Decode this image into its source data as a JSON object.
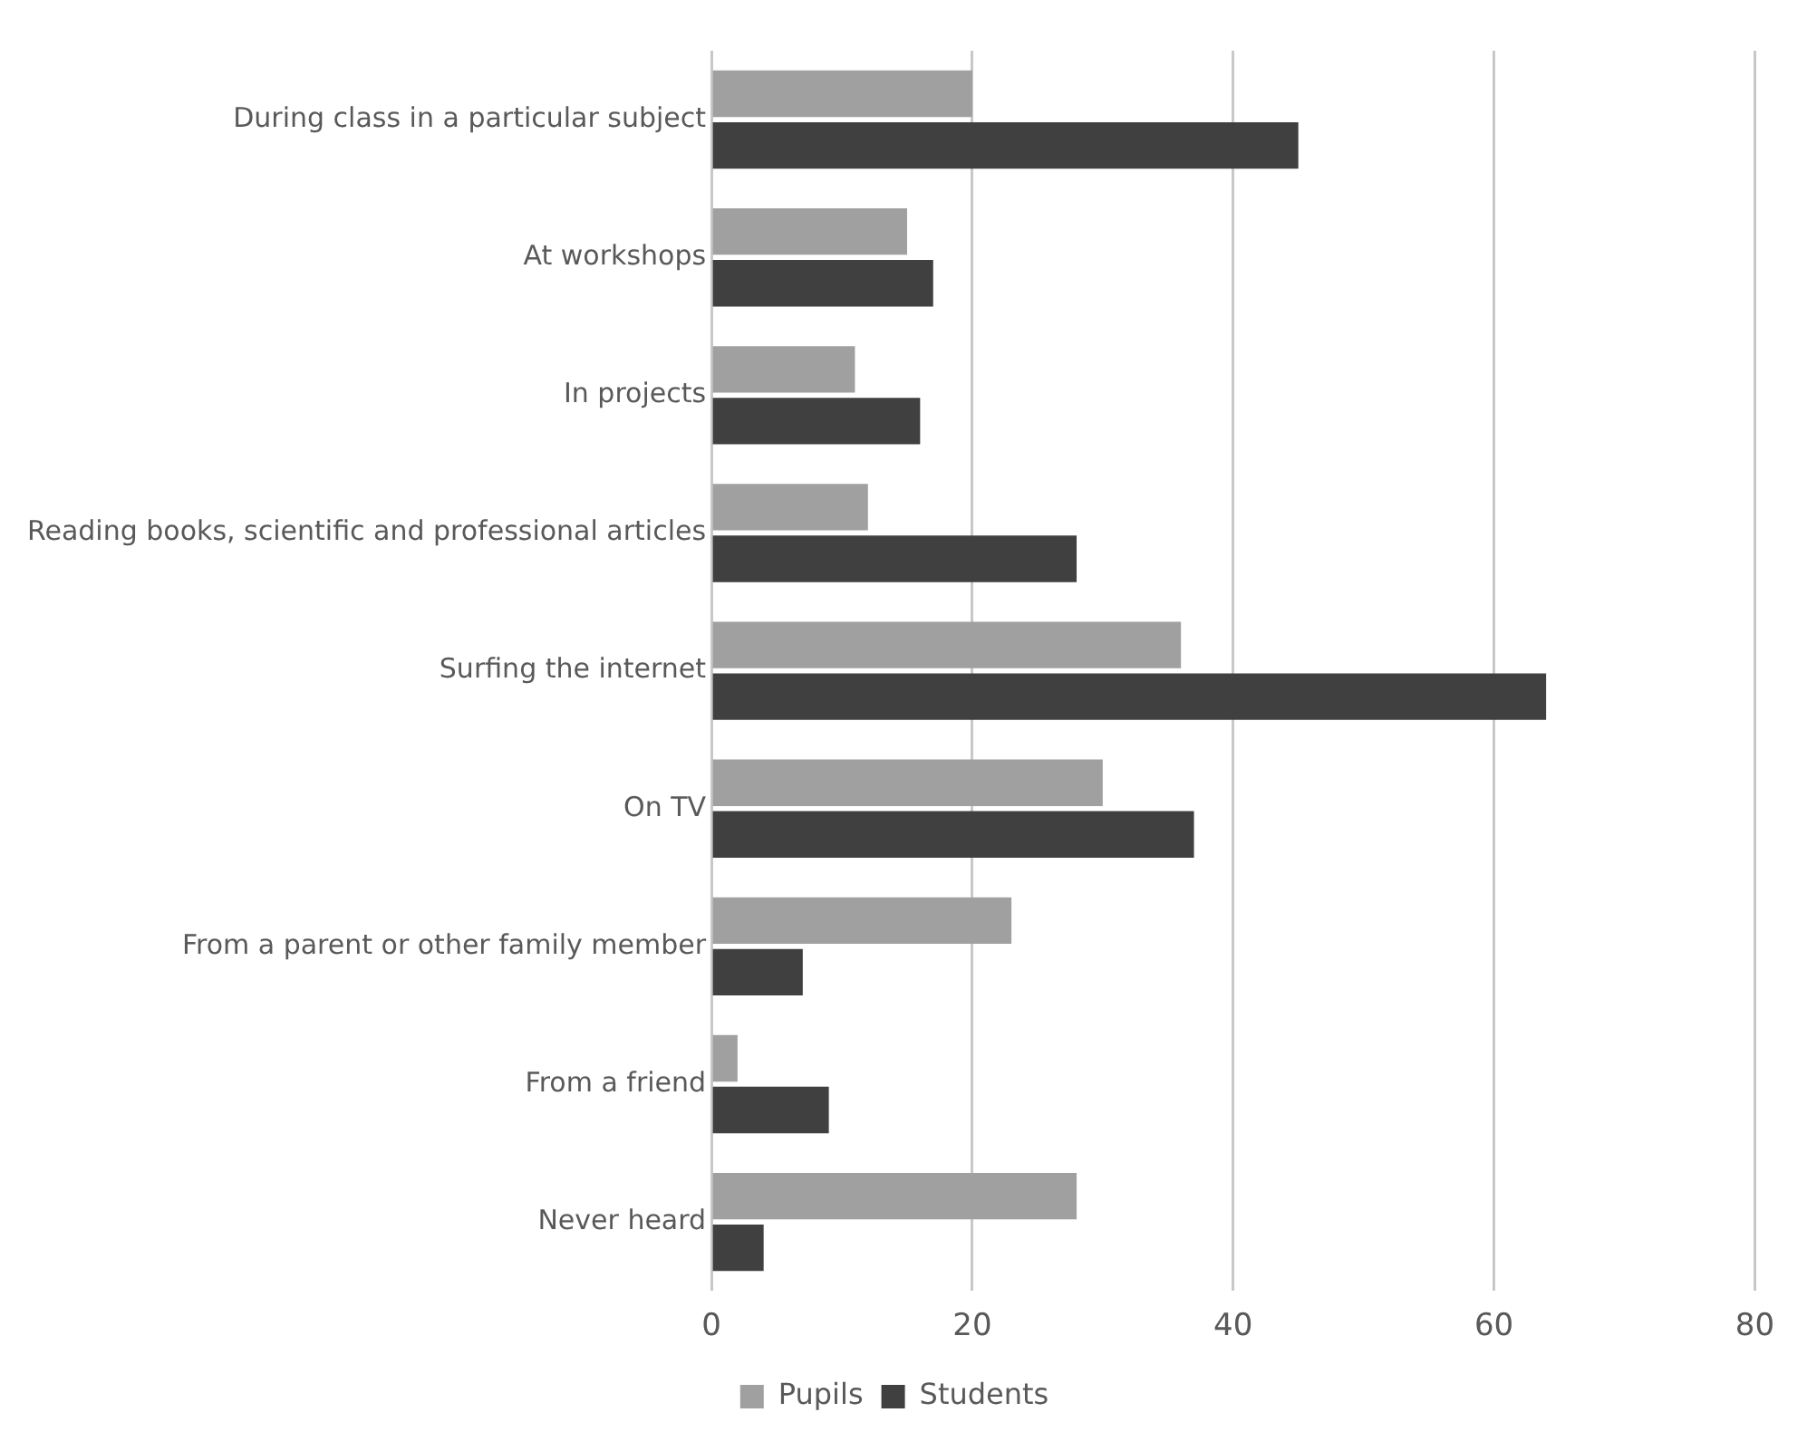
{
  "chart_data": {
    "type": "bar",
    "orientation": "horizontal",
    "categories": [
      "During class in a particular subject",
      "At workshops",
      "In projects",
      "Reading books, scientific and professional articles",
      "Surfing the internet",
      "On TV",
      "From a parent or other family member",
      "From a friend",
      "Never heard"
    ],
    "series": [
      {
        "name": "Pupils",
        "color": "#a0a0a0",
        "values": [
          20,
          15,
          11,
          12,
          36,
          30,
          23,
          2,
          28
        ]
      },
      {
        "name": "Students",
        "color": "#404040",
        "values": [
          45,
          17,
          16,
          28,
          64,
          37,
          7,
          9,
          4
        ]
      }
    ],
    "xlim": [
      0,
      80
    ],
    "xticks": [
      0,
      20,
      40,
      60,
      80
    ],
    "grid": "x",
    "legend": "bottom"
  }
}
